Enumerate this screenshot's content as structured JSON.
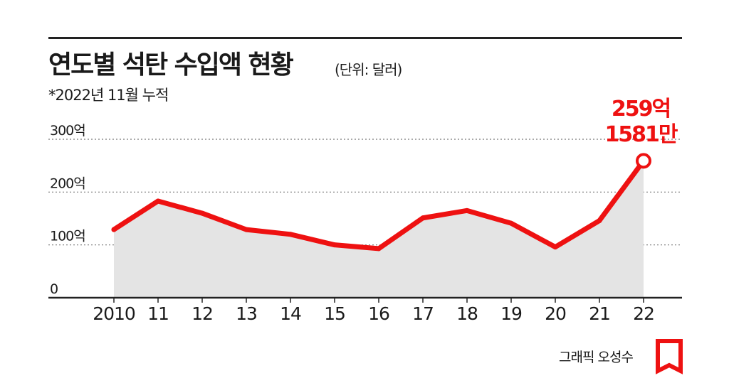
{
  "title": "연도별 석탄 수입액 현황",
  "unit": "(단위: 달러)",
  "note": "*2022년 11월 누적",
  "credit": "그래픽 오성수",
  "colors": {
    "line": "#ee1111",
    "area": "#e4e4e4",
    "text": "#1a1a1a"
  },
  "chart_data": {
    "type": "area",
    "x": [
      "2010",
      "11",
      "12",
      "13",
      "14",
      "15",
      "16",
      "17",
      "18",
      "19",
      "20",
      "21",
      "22"
    ],
    "values": [
      129,
      183,
      160,
      129,
      120,
      100,
      93,
      151,
      165,
      141,
      96,
      146,
      259.1581
    ],
    "ylim": [
      0,
      300
    ],
    "yticks": [
      0,
      100,
      200,
      300
    ],
    "ytick_labels": [
      "0",
      "100억",
      "200억",
      "300억"
    ],
    "grid": true,
    "highlight": {
      "index": 12,
      "label_line1": "259억",
      "label_line2": "1581만"
    }
  }
}
